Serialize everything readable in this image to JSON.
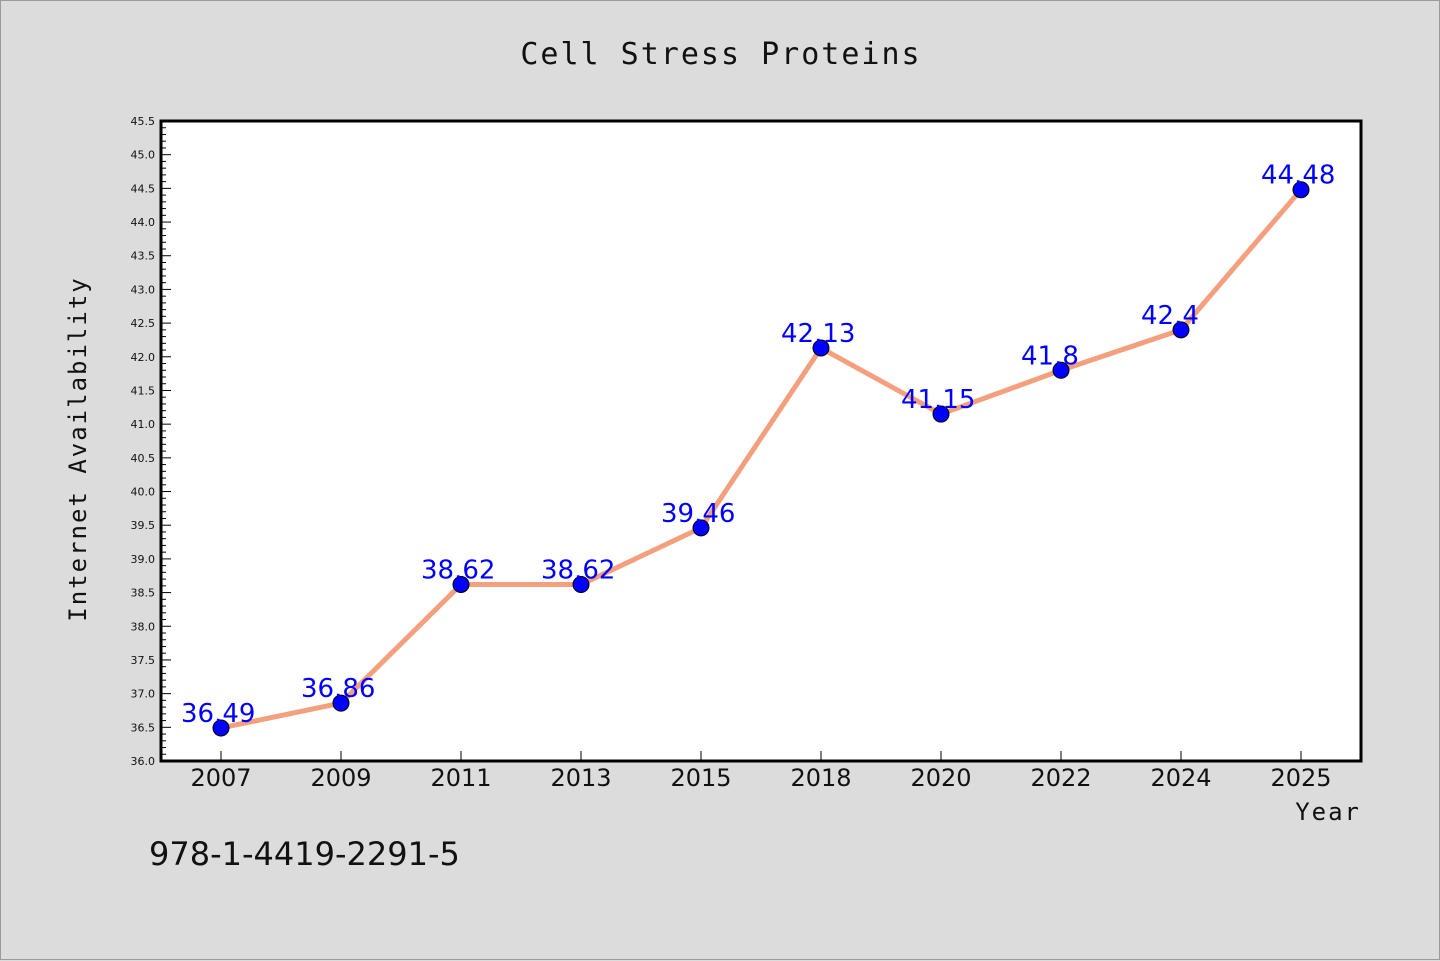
{
  "chart_data": {
    "type": "line",
    "title": "Cell Stress Proteins",
    "xlabel": "Year",
    "ylabel": "Internet Availability",
    "categories": [
      "2007",
      "2009",
      "2011",
      "2013",
      "2015",
      "2018",
      "2020",
      "2022",
      "2024",
      "2025"
    ],
    "series": [
      {
        "values": [
          36.49,
          36.86,
          38.62,
          38.62,
          39.46,
          42.13,
          41.15,
          41.8,
          42.4,
          44.48
        ],
        "data_labels": [
          "36.49",
          "36.86",
          "38.62",
          "38.62",
          "39.46",
          "42.13",
          "41.15",
          "41.8",
          "42.4",
          "44.48"
        ],
        "line_color": "#f4a07e",
        "marker_color": "#0000ff"
      }
    ],
    "ylim": [
      36.0,
      45.5
    ],
    "yticks": [
      "36.0",
      "36.5",
      "37.0",
      "37.5",
      "38.0",
      "38.5",
      "39.0",
      "39.5",
      "40.0",
      "40.5",
      "41.0",
      "41.5",
      "42.0",
      "42.5",
      "43.0",
      "43.5",
      "44.0",
      "44.5",
      "45.0",
      "45.5"
    ],
    "grid": false,
    "legend": "none",
    "colors": {
      "background": "#dcdcdc",
      "plot_background": "#ffffff",
      "label_color": "#0000ff"
    }
  },
  "footer": {
    "isbn": "978-1-4419-2291-5"
  }
}
